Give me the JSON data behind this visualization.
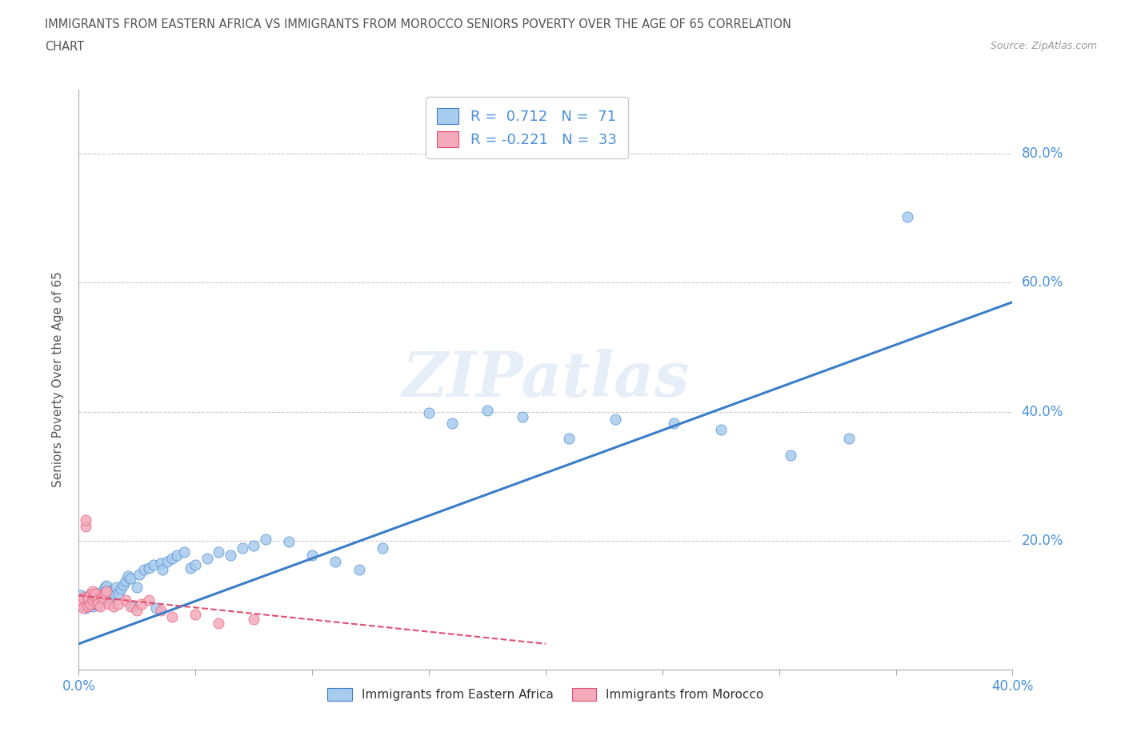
{
  "title_line1": "IMMIGRANTS FROM EASTERN AFRICA VS IMMIGRANTS FROM MOROCCO SENIORS POVERTY OVER THE AGE OF 65 CORRELATION",
  "title_line2": "CHART",
  "source": "Source: ZipAtlas.com",
  "ylabel": "Seniors Poverty Over the Age of 65",
  "watermark": "ZIPatlas",
  "legend1_label": "Immigrants from Eastern Africa",
  "legend2_label": "Immigrants from Morocco",
  "R1": 0.712,
  "N1": 71,
  "R2": -0.221,
  "N2": 33,
  "blue_color": "#A8CCEE",
  "pink_color": "#F4AABB",
  "trend_blue": "#3A7DC9",
  "trend_pink": "#E05070",
  "background_color": "#FFFFFF",
  "grid_color": "#CCCCCC",
  "title_color": "#555555",
  "axis_label_color": "#4A90D9",
  "blue_scatter_x": [
    0.001,
    0.002,
    0.002,
    0.003,
    0.003,
    0.004,
    0.004,
    0.005,
    0.005,
    0.006,
    0.006,
    0.007,
    0.007,
    0.007,
    0.008,
    0.008,
    0.009,
    0.009,
    0.01,
    0.01,
    0.011,
    0.011,
    0.012,
    0.012,
    0.013,
    0.014,
    0.015,
    0.016,
    0.017,
    0.018,
    0.019,
    0.02,
    0.021,
    0.022,
    0.023,
    0.025,
    0.026,
    0.028,
    0.03,
    0.032,
    0.033,
    0.035,
    0.036,
    0.038,
    0.04,
    0.042,
    0.045,
    0.048,
    0.05,
    0.055,
    0.06,
    0.065,
    0.07,
    0.075,
    0.08,
    0.09,
    0.1,
    0.11,
    0.12,
    0.13,
    0.15,
    0.16,
    0.175,
    0.19,
    0.21,
    0.23,
    0.255,
    0.275,
    0.305,
    0.33,
    0.355
  ],
  "blue_scatter_y": [
    0.115,
    0.1,
    0.11,
    0.095,
    0.108,
    0.1,
    0.112,
    0.105,
    0.115,
    0.098,
    0.108,
    0.102,
    0.112,
    0.118,
    0.1,
    0.115,
    0.105,
    0.118,
    0.108,
    0.122,
    0.112,
    0.128,
    0.115,
    0.13,
    0.122,
    0.115,
    0.118,
    0.128,
    0.118,
    0.125,
    0.132,
    0.138,
    0.145,
    0.142,
    0.098,
    0.128,
    0.148,
    0.155,
    0.158,
    0.162,
    0.095,
    0.165,
    0.155,
    0.168,
    0.172,
    0.178,
    0.182,
    0.158,
    0.162,
    0.172,
    0.182,
    0.178,
    0.188,
    0.192,
    0.202,
    0.198,
    0.178,
    0.168,
    0.155,
    0.188,
    0.398,
    0.382,
    0.402,
    0.392,
    0.358,
    0.388,
    0.382,
    0.372,
    0.332,
    0.358,
    0.702
  ],
  "pink_scatter_x": [
    0.001,
    0.001,
    0.002,
    0.002,
    0.003,
    0.003,
    0.004,
    0.004,
    0.005,
    0.005,
    0.006,
    0.006,
    0.007,
    0.007,
    0.008,
    0.008,
    0.009,
    0.01,
    0.011,
    0.012,
    0.013,
    0.015,
    0.017,
    0.02,
    0.022,
    0.025,
    0.027,
    0.03,
    0.035,
    0.04,
    0.05,
    0.06,
    0.075
  ],
  "pink_scatter_y": [
    0.102,
    0.108,
    0.095,
    0.112,
    0.222,
    0.232,
    0.098,
    0.112,
    0.102,
    0.118,
    0.108,
    0.122,
    0.112,
    0.118,
    0.108,
    0.102,
    0.098,
    0.112,
    0.118,
    0.122,
    0.102,
    0.098,
    0.102,
    0.108,
    0.098,
    0.092,
    0.102,
    0.108,
    0.092,
    0.082,
    0.085,
    0.072,
    0.078
  ],
  "blue_trend_x": [
    0.0,
    0.4
  ],
  "blue_trend_y": [
    0.04,
    0.57
  ],
  "pink_trend_x": [
    0.0,
    0.2
  ],
  "pink_trend_y": [
    0.115,
    0.04
  ],
  "xlim": [
    0.0,
    0.4
  ],
  "ylim": [
    0.0,
    0.9
  ],
  "xtick_positions": [
    0.0,
    0.05,
    0.1,
    0.15,
    0.2,
    0.25,
    0.3,
    0.35,
    0.4
  ],
  "xtick_edge_labels": {
    "0.0": "0.0%",
    "0.4": "40.0%"
  },
  "yticks": [
    0.0,
    0.2,
    0.4,
    0.6,
    0.8
  ],
  "ytick_labels": [
    "",
    "20.0%",
    "40.0%",
    "60.0%",
    "80.0%"
  ]
}
